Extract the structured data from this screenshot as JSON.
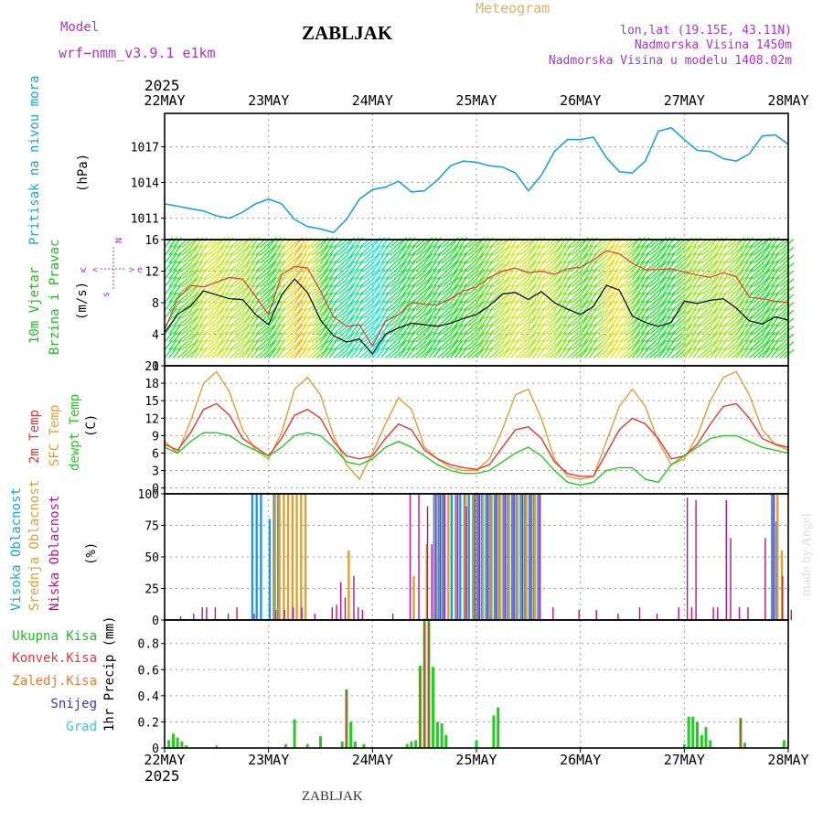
{
  "header": {
    "model_label": "Model",
    "model_name": "wrf−nmm_v3.9.1  e1km",
    "station": "ZABLJAK",
    "meteogram": "Meteogram",
    "lonlat": "lon,lat (19.15E, 43.11N)",
    "elevation": "Nadmorska Visina 1450m",
    "model_elevation": "Nadmorska Visina u modelu 1408.02m",
    "year_top": "2025",
    "year_bottom": "2025",
    "footer_station": "ZABLJAK",
    "watermark": "made by Angel"
  },
  "colors": {
    "pressure": "#1aa3e0",
    "wind_label": "#22bb22",
    "temp2m": "#ee3333",
    "sfc": "#e0a030",
    "dew": "#22cc22",
    "cloud_high": "#2299dd",
    "cloud_mid": "#e0a030",
    "cloud_low": "#bb1188",
    "precip": "#22cc22",
    "conv": "#ee3333",
    "snow": "#3333dd",
    "grad": "#33cccc",
    "header_purple": "#aa33cc"
  },
  "chart_data": [
    {
      "type": "line",
      "panel": "pressure",
      "title": "Pritisak na nivou mora",
      "ylabel": "(hPa)",
      "x_ticks": [
        "22MAY",
        "23MAY",
        "24MAY",
        "25MAY",
        "26MAY",
        "27MAY",
        "28MAY"
      ],
      "y_ticks": [
        1011,
        1014,
        1017
      ],
      "ylim": [
        1009.2,
        1019.8
      ],
      "x": [
        0,
        3,
        6,
        9,
        12,
        15,
        18,
        21,
        24,
        27,
        30,
        33,
        36,
        39,
        42,
        45,
        48,
        51,
        54,
        57,
        60,
        63,
        66,
        69,
        72,
        75,
        78,
        81,
        84,
        87,
        90,
        93,
        96,
        99,
        102,
        105,
        108,
        111,
        114,
        117,
        120,
        123,
        126,
        129,
        132,
        135,
        138,
        141,
        144
      ],
      "series": [
        {
          "name": "Pritisak na nivou mora",
          "values": [
            1012.2,
            1012.0,
            1011.8,
            1011.6,
            1011.2,
            1011.0,
            1011.5,
            1012.2,
            1012.6,
            1012.2,
            1010.9,
            1010.3,
            1010.1,
            1009.8,
            1010.9,
            1012.6,
            1013.4,
            1013.6,
            1014.1,
            1013.2,
            1013.3,
            1014.2,
            1015.4,
            1015.8,
            1015.7,
            1015.4,
            1015.3,
            1014.8,
            1013.3,
            1014.6,
            1016.6,
            1017.6,
            1017.6,
            1017.8,
            1016.1,
            1014.9,
            1014.8,
            1015.8,
            1018.3,
            1018.6,
            1017.6,
            1016.7,
            1016.6,
            1016.0,
            1015.8,
            1016.4,
            1017.9,
            1018.0,
            1017.2
          ]
        }
      ]
    },
    {
      "type": "line",
      "panel": "wind",
      "title": "10m Vjetar Brzina i Pravac",
      "ylabel": "(m/s)",
      "y_ticks": [
        0,
        4,
        8,
        12,
        16
      ],
      "ylim": [
        0,
        16
      ],
      "compass": {
        "w": "w",
        "e": "e",
        "n": "N",
        "s": "s"
      },
      "x": [
        0,
        3,
        6,
        9,
        12,
        15,
        18,
        21,
        24,
        27,
        30,
        33,
        36,
        39,
        42,
        45,
        48,
        51,
        54,
        57,
        60,
        63,
        66,
        69,
        72,
        75,
        78,
        81,
        84,
        87,
        90,
        93,
        96,
        99,
        102,
        105,
        108,
        111,
        114,
        117,
        120,
        123,
        126,
        129,
        132,
        135,
        138,
        141,
        144
      ],
      "series": [
        {
          "name": "brzina",
          "values": [
            4.2,
            6.5,
            7.6,
            9.5,
            9.0,
            8.5,
            8.4,
            6.5,
            5.2,
            9.0,
            11.0,
            9.3,
            5.8,
            3.8,
            3.0,
            3.4,
            1.5,
            4.0,
            4.8,
            5.4,
            5.2,
            5.0,
            5.4,
            6.0,
            6.5,
            7.6,
            9.1,
            9.3,
            8.4,
            9.4,
            8.0,
            7.2,
            6.5,
            7.5,
            10.2,
            9.6,
            6.3,
            5.5,
            5.0,
            5.5,
            8.2,
            7.9,
            8.3,
            8.5,
            7.3,
            5.7,
            5.3,
            6.2,
            5.8
          ]
        },
        {
          "name": "udari",
          "values": [
            4.5,
            8.5,
            10.2,
            10.0,
            10.6,
            11.2,
            11.0,
            8.8,
            6.5,
            11.5,
            12.6,
            12.4,
            9.5,
            6.2,
            5.0,
            5.2,
            2.5,
            5.6,
            6.5,
            8.0,
            7.8,
            7.7,
            8.5,
            9.5,
            10.0,
            11.2,
            12.0,
            12.4,
            11.8,
            12.0,
            11.6,
            12.3,
            12.5,
            13.4,
            14.6,
            14.2,
            13.0,
            12.2,
            12.2,
            12.3,
            11.9,
            11.5,
            11.2,
            11.8,
            11.3,
            8.7,
            8.5,
            8.2,
            8.0
          ]
        }
      ]
    },
    {
      "type": "line",
      "panel": "temperature",
      "labels": [
        "2m Temp",
        "SFC Temp",
        "dewpt Temp"
      ],
      "ylabel": "(C)",
      "y_ticks": [
        0,
        3,
        6,
        9,
        12,
        15,
        18,
        21
      ],
      "ylim": [
        -1,
        21
      ],
      "x": [
        0,
        3,
        6,
        9,
        12,
        15,
        18,
        21,
        24,
        27,
        30,
        33,
        36,
        39,
        42,
        45,
        48,
        51,
        54,
        57,
        60,
        63,
        66,
        69,
        72,
        75,
        78,
        81,
        84,
        87,
        90,
        93,
        96,
        99,
        102,
        105,
        108,
        111,
        114,
        117,
        120,
        123,
        126,
        129,
        132,
        135,
        138,
        141,
        144
      ],
      "series": [
        {
          "name": "2m Temp",
          "values": [
            7.5,
            6.5,
            9.5,
            13.5,
            14.5,
            12.5,
            8.5,
            7.0,
            5.5,
            8.5,
            12.5,
            13.5,
            12.0,
            8.0,
            5.5,
            5.0,
            5.5,
            8.5,
            11.0,
            10.0,
            6.5,
            5.0,
            4.0,
            3.5,
            3.2,
            4.0,
            7.0,
            10.0,
            10.5,
            8.5,
            4.5,
            2.5,
            2.0,
            2.0,
            6.0,
            10.0,
            12.0,
            11.0,
            8.5,
            5.0,
            5.5,
            7.5,
            11.0,
            14.0,
            14.5,
            12.0,
            8.5,
            7.5,
            7.0
          ]
        },
        {
          "name": "SFC Temp",
          "values": [
            8.0,
            6.0,
            11.5,
            18.0,
            20.0,
            16.5,
            10.0,
            6.5,
            5.0,
            9.5,
            17.0,
            19.0,
            16.0,
            9.0,
            4.0,
            1.5,
            6.0,
            11.0,
            15.5,
            13.5,
            7.0,
            5.0,
            3.5,
            3.0,
            3.0,
            5.0,
            10.0,
            16.0,
            17.0,
            12.0,
            5.0,
            2.0,
            1.5,
            2.0,
            8.0,
            14.0,
            17.0,
            14.0,
            8.0,
            4.0,
            5.0,
            9.0,
            15.0,
            19.0,
            20.0,
            16.0,
            10.0,
            7.5,
            6.5
          ]
        },
        {
          "name": "dewpt Temp",
          "values": [
            7.0,
            6.0,
            8.0,
            9.5,
            9.5,
            9.0,
            7.5,
            6.5,
            5.5,
            7.0,
            9.0,
            9.5,
            9.0,
            7.0,
            4.5,
            4.0,
            5.0,
            7.0,
            8.0,
            7.0,
            5.5,
            4.0,
            3.0,
            2.5,
            2.5,
            3.0,
            4.5,
            6.0,
            7.0,
            5.5,
            3.0,
            1.0,
            0.5,
            1.0,
            3.0,
            3.5,
            3.5,
            1.5,
            1.0,
            4.0,
            5.5,
            7.0,
            8.5,
            9.0,
            9.0,
            8.0,
            7.0,
            6.5,
            6.0
          ]
        }
      ]
    },
    {
      "type": "bar",
      "panel": "cloud",
      "labels": [
        "Visoka Oblacnost",
        "Srednja Oblacnost",
        "Niska Oblacnost"
      ],
      "ylabel": "(%)",
      "y_ticks": [
        0,
        25,
        50,
        75,
        100
      ],
      "ylim": [
        0,
        100
      ],
      "series": [
        {
          "name": "Visoka Oblacnost",
          "x": [
            20,
            21,
            22,
            24,
            25,
            26,
            62,
            63,
            64,
            66,
            67,
            68,
            69,
            70,
            71,
            72,
            73,
            74,
            75,
            76,
            77,
            78,
            79,
            80,
            81,
            82,
            83,
            84,
            85,
            86,
            140,
            141
          ],
          "values": [
            100,
            100,
            100,
            80,
            100,
            100,
            100,
            100,
            100,
            100,
            100,
            100,
            100,
            100,
            100,
            100,
            100,
            100,
            100,
            100,
            100,
            100,
            100,
            100,
            100,
            100,
            100,
            100,
            100,
            100,
            100,
            78
          ]
        },
        {
          "name": "Srednja Oblacnost",
          "x": [
            25,
            26,
            27,
            28,
            29,
            30,
            31,
            32,
            42,
            57,
            60,
            62,
            65,
            67,
            69,
            71,
            73,
            75,
            77,
            79,
            81,
            83,
            85,
            141,
            142
          ],
          "values": [
            100,
            100,
            100,
            100,
            100,
            100,
            100,
            100,
            55,
            35,
            60,
            100,
            100,
            100,
            100,
            100,
            100,
            100,
            100,
            100,
            100,
            100,
            100,
            100,
            55
          ]
        },
        {
          "name": "Niska Oblacnost",
          "x": [
            3,
            6,
            8,
            9,
            11,
            14,
            16,
            20,
            25,
            27,
            29,
            31,
            34,
            38,
            39,
            40,
            41,
            43,
            44,
            45,
            52,
            56,
            58,
            60,
            61,
            62,
            63,
            64,
            67,
            69,
            71,
            72,
            74,
            76,
            78,
            80,
            82,
            84,
            86,
            89,
            95,
            99,
            104,
            109,
            113,
            118,
            120,
            121,
            122,
            126,
            127,
            129,
            130,
            132,
            134,
            138,
            140,
            142,
            144
          ],
          "values": [
            3,
            5,
            10,
            10,
            10,
            5,
            10,
            5,
            8,
            8,
            10,
            10,
            5,
            10,
            12,
            30,
            18,
            35,
            10,
            8,
            5,
            100,
            100,
            90,
            60,
            100,
            100,
            100,
            100,
            90,
            100,
            100,
            100,
            100,
            100,
            100,
            100,
            100,
            100,
            10,
            8,
            8,
            5,
            10,
            5,
            10,
            97,
            10,
            95,
            10,
            10,
            95,
            65,
            10,
            10,
            65,
            100,
            35,
            8
          ]
        }
      ]
    },
    {
      "type": "bar",
      "panel": "precip",
      "labels": [
        "Ukupna Kisa",
        "Konvek.Kisa",
        "Zaledj.Kisa",
        "Snijeg",
        "Grad"
      ],
      "ylabel": "1hr Precip (mm)",
      "y_ticks": [
        0,
        0.2,
        0.4,
        0.6,
        0.8
      ],
      "ylim": [
        0,
        0.98
      ],
      "x_ticks": [
        "22MAY",
        "23MAY",
        "24MAY",
        "25MAY",
        "26MAY",
        "27MAY",
        "28MAY"
      ],
      "series": [
        {
          "name": "Ukupna Kisa",
          "x": [
            1,
            2,
            3,
            4,
            5,
            28,
            30,
            33,
            36,
            41,
            42,
            43,
            44,
            46,
            56,
            57,
            58,
            59,
            60,
            61,
            62,
            63,
            64,
            65,
            72,
            76,
            77,
            120,
            121,
            122,
            123,
            124,
            125,
            126,
            133,
            134,
            143
          ],
          "values": [
            0.06,
            0.11,
            0.08,
            0.05,
            0.02,
            0.03,
            0.22,
            0.03,
            0.09,
            0.05,
            0.45,
            0.2,
            0.05,
            0.03,
            0.03,
            0.05,
            0.06,
            0.63,
            0.99,
            0.99,
            0.62,
            0.2,
            0.19,
            0.1,
            0.06,
            0.25,
            0.31,
            0.03,
            0.24,
            0.24,
            0.2,
            0.1,
            0.16,
            0.06,
            0.23,
            0.04,
            0.06
          ]
        },
        {
          "name": "Konvek.Kisa",
          "x": [
            42,
            59,
            60,
            61,
            133
          ],
          "values": [
            0.44,
            0.6,
            0.96,
            0.96,
            0.22
          ]
        },
        {
          "name": "Zaledj.Kisa",
          "x": [
            4,
            12
          ],
          "values": [
            0.02,
            0.02
          ]
        },
        {
          "name": "Snijeg",
          "x": [],
          "values": []
        },
        {
          "name": "Grad",
          "x": [],
          "values": []
        }
      ]
    }
  ]
}
